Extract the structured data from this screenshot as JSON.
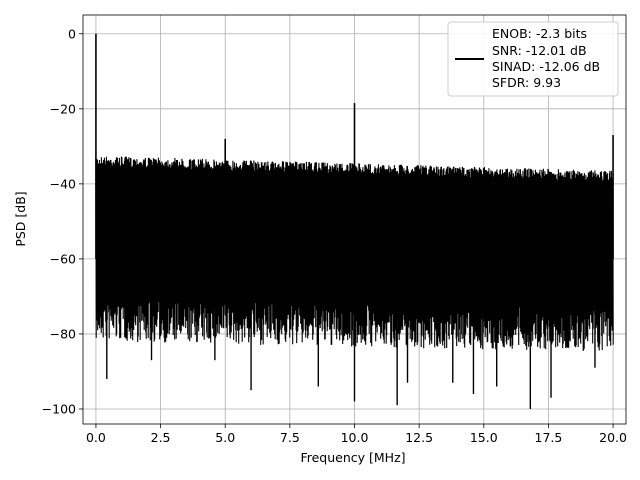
{
  "chart_data": {
    "type": "line",
    "xlabel": "Frequency [MHz]",
    "ylabel": "PSD [dB]",
    "xlim": [
      -0.5,
      20.5
    ],
    "ylim": [
      -104,
      5
    ],
    "xticks": [
      0.0,
      2.5,
      5.0,
      7.5,
      10.0,
      12.5,
      15.0,
      17.5,
      20.0
    ],
    "xtick_labels": [
      "0.0",
      "2.5",
      "5.0",
      "7.5",
      "10.0",
      "12.5",
      "15.0",
      "17.5",
      "20.0"
    ],
    "yticks": [
      0,
      -20,
      -40,
      -60,
      -80,
      -100
    ],
    "ytick_labels": [
      "0",
      "−20",
      "−40",
      "−60",
      "−80",
      "−100"
    ],
    "grid": true,
    "legend_position": "top-right",
    "series_color": "#000000",
    "noise_band": {
      "upper_start": -34,
      "upper_end": -38,
      "lower_start": -72,
      "lower_end": -75
    },
    "spikes": [
      {
        "x": 0.0,
        "y": 0
      },
      {
        "x": 5.0,
        "y": -28
      },
      {
        "x": 10.0,
        "y": -18.5
      },
      {
        "x": 20.0,
        "y": -27
      }
    ],
    "dips": [
      {
        "x": 0.42,
        "y": -92
      },
      {
        "x": 2.15,
        "y": -87
      },
      {
        "x": 4.6,
        "y": -87
      },
      {
        "x": 6.0,
        "y": -95
      },
      {
        "x": 8.6,
        "y": -94
      },
      {
        "x": 10.0,
        "y": -98
      },
      {
        "x": 11.65,
        "y": -99
      },
      {
        "x": 12.05,
        "y": -93
      },
      {
        "x": 13.8,
        "y": -93
      },
      {
        "x": 14.6,
        "y": -96
      },
      {
        "x": 15.5,
        "y": -94
      },
      {
        "x": 16.8,
        "y": -100
      },
      {
        "x": 17.6,
        "y": -97
      },
      {
        "x": 19.3,
        "y": -89
      }
    ],
    "legend": {
      "lines": [
        "ENOB: -2.3 bits",
        "SNR: -12.01 dB",
        "SINAD: -12.06 dB",
        "SFDR: 9.93"
      ]
    }
  }
}
